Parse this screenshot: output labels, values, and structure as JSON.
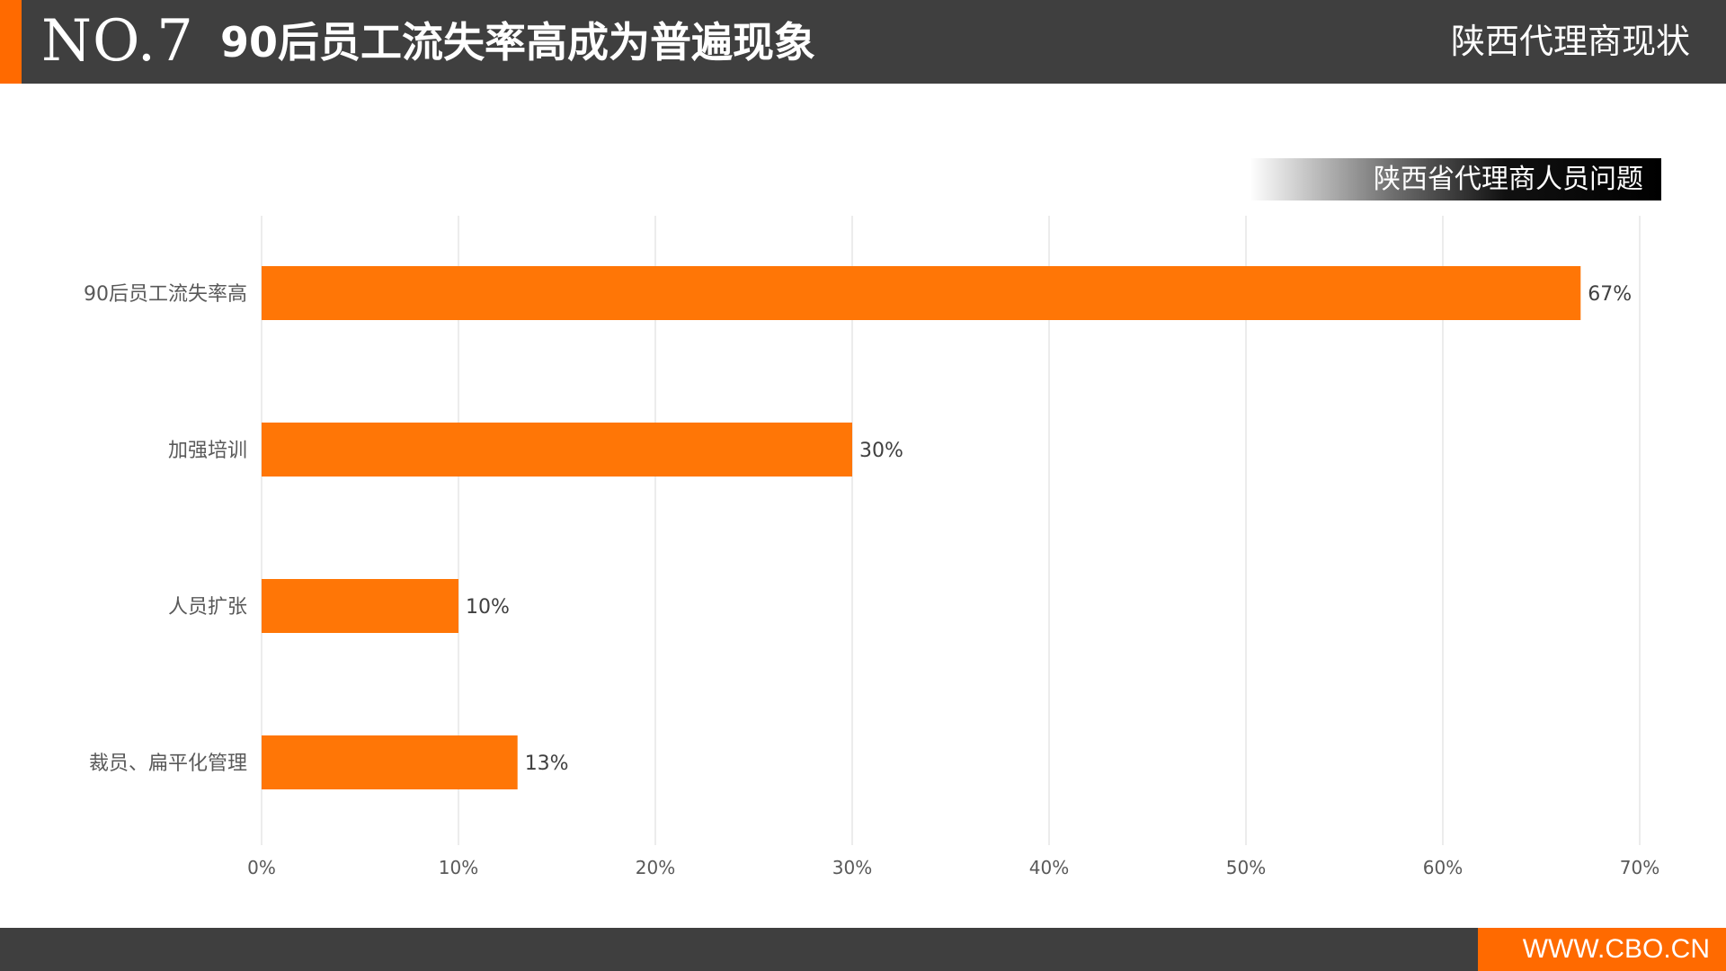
{
  "header": {
    "number": "NO.7",
    "title": "90后员工流失率高成为普遍现象",
    "section": "陕西代理商现状"
  },
  "chart_title": "陕西省代理商人员问题",
  "footer": {
    "url": "WWW.CBO.CN"
  },
  "colors": {
    "header_bg": "#3f3f3f",
    "accent": "#ff6a00",
    "bar": "#ff7606",
    "grid": "#d9d9d9",
    "axis_text": "#595959"
  },
  "chart_data": {
    "type": "bar",
    "orientation": "horizontal",
    "title": "陕西省代理商人员问题",
    "categories": [
      "90后员工流失率高",
      "加强培训",
      "人员扩张",
      "裁员、扁平化管理"
    ],
    "values": [
      67,
      30,
      10,
      13
    ],
    "value_labels": [
      "67%",
      "30%",
      "10%",
      "13%"
    ],
    "xlim": [
      0,
      70
    ],
    "x_ticks": [
      0,
      10,
      20,
      30,
      40,
      50,
      60,
      70
    ],
    "x_tick_labels": [
      "0%",
      "10%",
      "20%",
      "30%",
      "40%",
      "50%",
      "60%",
      "70%"
    ],
    "xlabel": "",
    "ylabel": "",
    "grid": true,
    "legend": false
  }
}
